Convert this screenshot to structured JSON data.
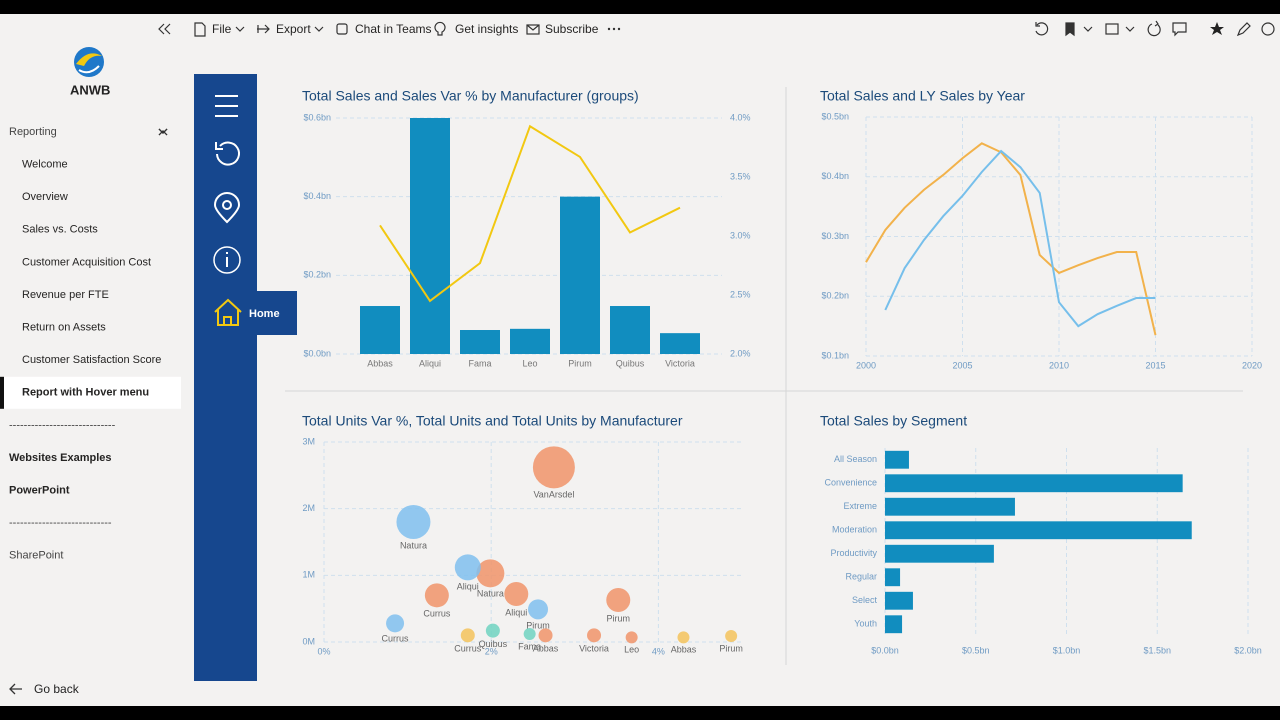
{
  "toolbar": {
    "items": [
      "File",
      "Export",
      "Chat in Teams",
      "Get insights",
      "Subscribe"
    ]
  },
  "sidebar": {
    "brand": "ANWB",
    "nav": [
      {
        "label": "Reporting",
        "level": 0,
        "bold": false,
        "chevron": "up"
      },
      {
        "label": "Welcome",
        "level": 1
      },
      {
        "label": "Overview",
        "level": 1
      },
      {
        "label": "Sales vs. Costs",
        "level": 1
      },
      {
        "label": "Customer Acquisition Cost",
        "level": 1
      },
      {
        "label": "Revenue per FTE",
        "level": 1
      },
      {
        "label": "Return on Assets",
        "level": 1
      },
      {
        "label": "Customer Satisfaction Score",
        "level": 1
      },
      {
        "label": "Report with Hover menu",
        "level": 1,
        "selected": true
      },
      {
        "label": "-----------------------------",
        "level": 0,
        "bold": false,
        "chevron": "down"
      },
      {
        "label": "Websites Examples",
        "level": 0,
        "bold": true,
        "chevron": "down"
      },
      {
        "label": "PowerPoint",
        "level": 0,
        "bold": true,
        "chevron": "down"
      },
      {
        "label": "----------------------------",
        "level": 0,
        "bold": false,
        "chevron": "up"
      },
      {
        "label": "SharePoint",
        "level": 0,
        "bold": false
      }
    ],
    "back": "Go back"
  },
  "hover_menu": {
    "home": "Home"
  },
  "chart_data": [
    {
      "type": "combo",
      "title": "Total Sales and Sales Var % by Manufacturer (groups)",
      "categories": [
        "Abbas",
        "Aliqui",
        "Fama",
        "Leo",
        "Pirum",
        "Quibus",
        "Victoria"
      ],
      "series": [
        {
          "type": "bar",
          "color": "#118dbf",
          "values": [
            0.122,
            0.6,
            0.061,
            0.064,
            0.4,
            0.122,
            0.053
          ]
        },
        {
          "type": "line",
          "color": "#f2c811",
          "axis": "y2",
          "values": [
            3.09,
            2.45,
            2.77,
            3.93,
            3.67,
            3.03,
            3.24
          ]
        }
      ],
      "ylim": [
        0,
        0.6
      ],
      "yticks": [
        {
          "value": 0,
          "label": "$0.0bn"
        },
        {
          "value": 0.2,
          "label": "$0.2bn"
        },
        {
          "value": 0.4,
          "label": "$0.4bn"
        },
        {
          "value": 0.6,
          "label": "$0.6bn"
        }
      ],
      "y2lim": [
        2,
        4
      ],
      "y2ticks": [
        {
          "value": 2,
          "label": "2.0%"
        },
        {
          "value": 2.5,
          "label": "2.5%"
        },
        {
          "value": 3,
          "label": "3.0%"
        },
        {
          "value": 3.5,
          "label": "3.5%"
        },
        {
          "value": 4,
          "label": "4.0%"
        }
      ],
      "grid": true
    },
    {
      "type": "line",
      "title": "Total Sales and LY Sales by Year",
      "x": [
        2000,
        2001,
        2002,
        2003,
        2004,
        2005,
        2006,
        2007,
        2008,
        2009,
        2010,
        2011,
        2012,
        2013,
        2014,
        2015
      ],
      "series": [
        {
          "color": "#f2b24b",
          "values": [
            0.257,
            0.311,
            0.348,
            0.378,
            0.403,
            0.431,
            0.456,
            0.441,
            0.403,
            0.269,
            0.239,
            0.252,
            0.264,
            0.274,
            0.274,
            0.135
          ]
        },
        {
          "color": "#76bfeb",
          "values": [
            null,
            0.177,
            0.247,
            0.294,
            0.334,
            0.368,
            0.408,
            0.443,
            0.416,
            0.373,
            0.19,
            0.15,
            0.17,
            0.184,
            0.197,
            0.197
          ]
        }
      ],
      "xlim": [
        2000,
        2020
      ],
      "xticks": [
        2000,
        2005,
        2010,
        2015,
        2020
      ],
      "ylim": [
        0.1,
        0.5
      ],
      "yticks": [
        {
          "value": 0.1,
          "label": "$0.1bn"
        },
        {
          "value": 0.2,
          "label": "$0.2bn"
        },
        {
          "value": 0.3,
          "label": "$0.3bn"
        },
        {
          "value": 0.4,
          "label": "$0.4bn"
        },
        {
          "value": 0.5,
          "label": "$0.5bn"
        }
      ],
      "grid": true
    },
    {
      "type": "scatter",
      "title": "Total Units Var %, Total Units and Total Units by Manufacturer",
      "series": [
        {
          "color": "#f0946a",
          "x": [
            2.75,
            1.99,
            1.35,
            2.3,
            3.52,
            2.65,
            3.23,
            3.68
          ],
          "y": [
            2.62,
            1.03,
            0.7,
            0.72,
            0.63,
            0.1,
            0.1,
            0.07
          ],
          "sizes": [
            4.41,
            1.96,
            1.44,
            1.44,
            1.44,
            0.49,
            0.49,
            0.36
          ],
          "labels": [
            "VanArsdel",
            "Natura",
            "Currus",
            "Aliqui",
            "Pirum",
            "Abbas",
            "Victoria",
            "Leo"
          ]
        },
        {
          "color": "#7fbfee",
          "x": [
            1.07,
            1.72,
            0.85,
            2.56
          ],
          "y": [
            1.8,
            1.12,
            0.28,
            0.49
          ],
          "sizes": [
            2.89,
            1.69,
            0.81,
            1.0
          ],
          "labels": [
            "Natura",
            "Aliqui",
            "Currus",
            "Pirum"
          ]
        },
        {
          "color": "#6fd3c1",
          "x": [
            2.02,
            2.46
          ],
          "y": [
            0.17,
            0.12
          ],
          "sizes": [
            0.49,
            0.36
          ],
          "labels": [
            "Quibus",
            "Fama"
          ]
        },
        {
          "color": "#f3c35c",
          "x": [
            1.72,
            4.3,
            4.87
          ],
          "y": [
            0.1,
            0.07,
            0.09
          ],
          "sizes": [
            0.49,
            0.36,
            0.36
          ],
          "labels": [
            "Currus",
            "Abbas",
            "Pirum"
          ]
        }
      ],
      "xlim": [
        0,
        5
      ],
      "xticks": [
        {
          "value": 0,
          "label": "0%"
        },
        {
          "value": 2,
          "label": "2%"
        },
        {
          "value": 4,
          "label": "4%"
        }
      ],
      "ylim": [
        0,
        3
      ],
      "yticks": [
        {
          "value": 0,
          "label": "0M"
        },
        {
          "value": 1,
          "label": "1M"
        },
        {
          "value": 2,
          "label": "2M"
        },
        {
          "value": 3,
          "label": "3M"
        }
      ],
      "grid": true
    },
    {
      "type": "hbar",
      "title": "Total Sales by Segment",
      "categories": [
        "All Season",
        "Convenience",
        "Extreme",
        "Moderation",
        "Productivity",
        "Regular",
        "Select",
        "Youth"
      ],
      "values": [
        0.132,
        1.64,
        0.716,
        1.69,
        0.6,
        0.083,
        0.154,
        0.094
      ],
      "color": "#118dbf",
      "xlim": [
        0,
        2
      ],
      "xticks": [
        {
          "value": 0,
          "label": "$0.0bn"
        },
        {
          "value": 0.5,
          "label": "$0.5bn"
        },
        {
          "value": 1,
          "label": "$1.0bn"
        },
        {
          "value": 1.5,
          "label": "$1.5bn"
        },
        {
          "value": 2,
          "label": "$2.0bn"
        }
      ],
      "grid": true
    }
  ]
}
